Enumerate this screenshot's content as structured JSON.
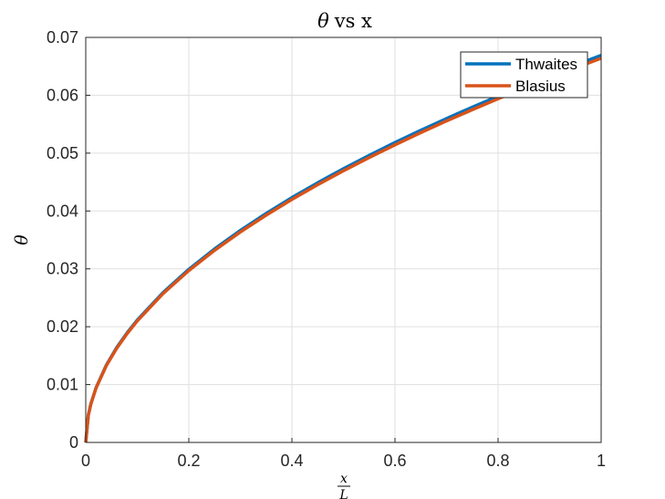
{
  "chart_data": {
    "type": "line",
    "title": {
      "symbol": "θ",
      "rest": "vs x"
    },
    "xlabel": {
      "numerator": "x",
      "denominator": "L"
    },
    "ylabel": "θ",
    "xlim": [
      0,
      1
    ],
    "ylim": [
      0,
      0.07
    ],
    "x_ticks": [
      0,
      0.2,
      0.4,
      0.6,
      0.8,
      1
    ],
    "x_tick_labels": [
      "0",
      "0.2",
      "0.4",
      "0.6",
      "0.8",
      "1"
    ],
    "y_ticks": [
      0,
      0.01,
      0.02,
      0.03,
      0.04,
      0.05,
      0.06,
      0.07
    ],
    "y_tick_labels": [
      "0",
      "0.01",
      "0.02",
      "0.03",
      "0.04",
      "0.05",
      "0.06",
      "0.07"
    ],
    "grid": true,
    "legend_position": "top-right",
    "x": [
      0,
      0.005,
      0.01,
      0.02,
      0.04,
      0.06,
      0.08,
      0.1,
      0.15,
      0.2,
      0.25,
      0.3,
      0.35,
      0.4,
      0.45,
      0.5,
      0.55,
      0.6,
      0.65,
      0.7,
      0.75,
      0.8,
      0.85,
      0.9,
      0.95,
      1.0
    ],
    "series": [
      {
        "name": "Thwaites",
        "color": "#0072BD",
        "values": [
          0,
          0.00473,
          0.00669,
          0.00946,
          0.01338,
          0.01639,
          0.01892,
          0.02116,
          0.02591,
          0.02992,
          0.03345,
          0.03664,
          0.03958,
          0.04232,
          0.04488,
          0.04731,
          0.04962,
          0.05183,
          0.05394,
          0.05598,
          0.05794,
          0.05984,
          0.06168,
          0.06347,
          0.06521,
          0.06691
        ]
      },
      {
        "name": "Blasius",
        "color": "#D95319",
        "values": [
          0,
          0.00469,
          0.00664,
          0.00939,
          0.01328,
          0.01626,
          0.01878,
          0.021,
          0.02572,
          0.0297,
          0.0332,
          0.03637,
          0.03928,
          0.04199,
          0.04454,
          0.04695,
          0.04924,
          0.05143,
          0.05353,
          0.05556,
          0.0575,
          0.05939,
          0.06121,
          0.06299,
          0.06471,
          0.0664
        ]
      }
    ]
  }
}
